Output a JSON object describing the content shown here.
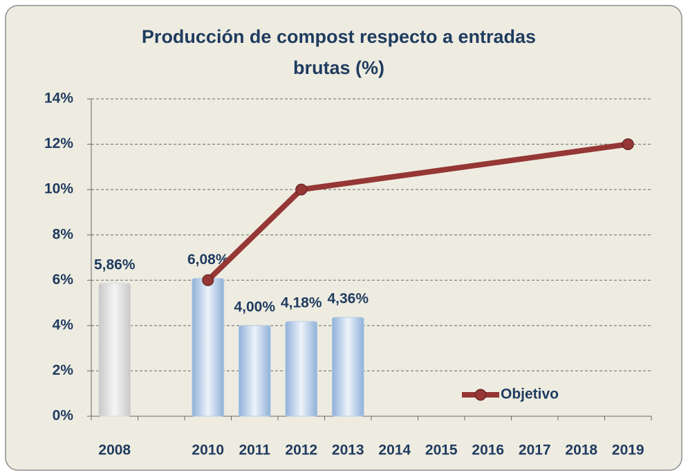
{
  "chart_data": {
    "type": "bar_line",
    "title": [
      "Producción de compost respecto a entradas",
      "brutas (%)"
    ],
    "categories": [
      "2008",
      null,
      "2010",
      "2011",
      "2012",
      "2013",
      "2014",
      "2015",
      "2016",
      "2017",
      "2018",
      "2019"
    ],
    "values": [
      5.86,
      null,
      6.08,
      4.0,
      4.18,
      4.36,
      null,
      null,
      null,
      null,
      null,
      null
    ],
    "value_labels": [
      "5,86%",
      null,
      "6,08%",
      "4,00%",
      "4,18%",
      "4,36%",
      null,
      null,
      null,
      null,
      null,
      null
    ],
    "bar_colors": [
      "#d9d9d9",
      null,
      "#b8cde6",
      "#b8cde6",
      "#b8cde6",
      "#b8cde6",
      null,
      null,
      null,
      null,
      null,
      null
    ],
    "series": [
      {
        "name": "Objetivo",
        "color": "#953735",
        "connect_gaps": true,
        "values": [
          null,
          null,
          6,
          null,
          10,
          null,
          null,
          null,
          null,
          null,
          null,
          12
        ]
      }
    ],
    "ylim": [
      0,
      14
    ],
    "yticks": [
      {
        "value": 0,
        "label": "0%"
      },
      {
        "value": 2,
        "label": "2%"
      },
      {
        "value": 4,
        "label": "4%"
      },
      {
        "value": 6,
        "label": "6%"
      },
      {
        "value": 8,
        "label": "8%"
      },
      {
        "value": 10,
        "label": "10%"
      },
      {
        "value": 12,
        "label": "12%"
      },
      {
        "value": 14,
        "label": "14%"
      }
    ],
    "grid": true,
    "legend": "lower right"
  }
}
